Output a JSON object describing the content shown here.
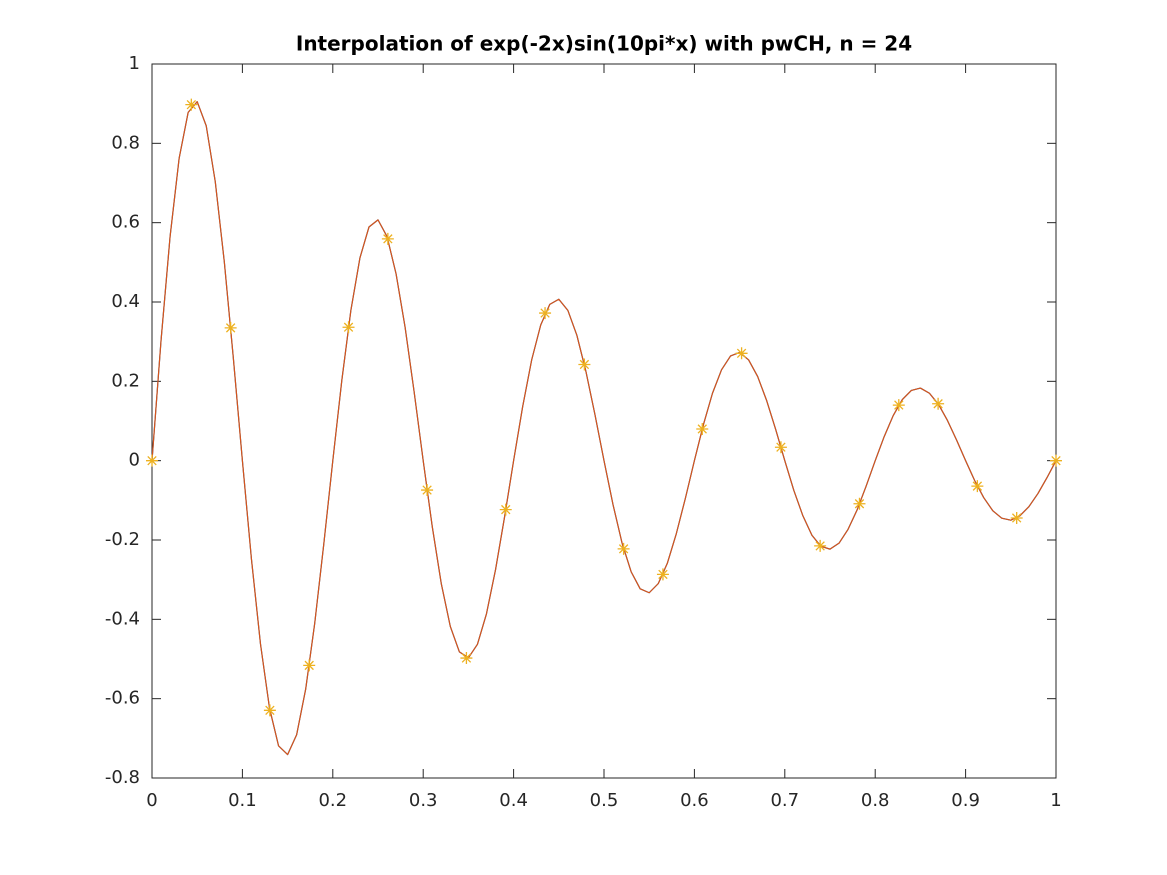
{
  "chart_data": {
    "type": "line",
    "title": "Interpolation of exp(-2x)sin(10pi*x) with pwCH, n = 24",
    "x": [
      0,
      0.01,
      0.02,
      0.03,
      0.04,
      0.05,
      0.06,
      0.07,
      0.08,
      0.09,
      0.1,
      0.11,
      0.12,
      0.13,
      0.14,
      0.15,
      0.16,
      0.17,
      0.18,
      0.19,
      0.2,
      0.21,
      0.22,
      0.23,
      0.24,
      0.25,
      0.26,
      0.27,
      0.28,
      0.29,
      0.3,
      0.31,
      0.32,
      0.33,
      0.34,
      0.35,
      0.36,
      0.37,
      0.38,
      0.39,
      0.4,
      0.41,
      0.42,
      0.43,
      0.44,
      0.45,
      0.46,
      0.47,
      0.48,
      0.49,
      0.5,
      0.51,
      0.52,
      0.53,
      0.54,
      0.55,
      0.56,
      0.57,
      0.58,
      0.59,
      0.6,
      0.61,
      0.62,
      0.63,
      0.64,
      0.65,
      0.66,
      0.67,
      0.68,
      0.69,
      0.7,
      0.71,
      0.72,
      0.73,
      0.74,
      0.75,
      0.76,
      0.77,
      0.78,
      0.79,
      0.8,
      0.81,
      0.82,
      0.83,
      0.84,
      0.85,
      0.86,
      0.87,
      0.88,
      0.89,
      0.9,
      0.91,
      0.92,
      0.93,
      0.94,
      0.95,
      0.96,
      0.97,
      0.98,
      0.99,
      1
    ],
    "series": [
      {
        "color": "#0072bd",
        "values": [
          0,
          0.303,
          0.565,
          0.762,
          0.878,
          0.905,
          0.844,
          0.703,
          0.501,
          0.258,
          0,
          -0.248,
          -0.462,
          -0.624,
          -0.719,
          -0.741,
          -0.691,
          -0.576,
          -0.41,
          -0.211,
          0,
          0.203,
          0.379,
          0.511,
          0.589,
          0.607,
          0.565,
          0.471,
          0.336,
          0.173,
          0,
          -0.166,
          -0.31,
          -0.418,
          -0.482,
          -0.497,
          -0.463,
          -0.386,
          -0.275,
          -0.142,
          0,
          0.136,
          0.254,
          0.342,
          0.394,
          0.407,
          0.379,
          0.316,
          0.225,
          0.116,
          0,
          -0.111,
          -0.208,
          -0.28,
          -0.323,
          -0.333,
          -0.31,
          -0.259,
          -0.184,
          -0.095,
          0,
          0.091,
          0.17,
          0.229,
          0.264,
          0.273,
          0.254,
          0.212,
          0.151,
          0.078,
          0,
          -0.075,
          -0.139,
          -0.188,
          -0.216,
          -0.223,
          -0.208,
          -0.173,
          -0.124,
          -0.064,
          0,
          0.061,
          0.114,
          0.154,
          0.177,
          0.183,
          0.17,
          0.142,
          0.101,
          0.052,
          0,
          -0.05,
          -0.093,
          -0.126,
          -0.145,
          -0.15,
          -0.139,
          -0.116,
          -0.083,
          -0.043,
          0
        ]
      },
      {
        "color": "#d95319",
        "values": [
          0,
          0.303,
          0.565,
          0.762,
          0.878,
          0.905,
          0.844,
          0.703,
          0.501,
          0.258,
          0,
          -0.248,
          -0.462,
          -0.624,
          -0.719,
          -0.741,
          -0.691,
          -0.576,
          -0.41,
          -0.211,
          0,
          0.203,
          0.379,
          0.511,
          0.589,
          0.607,
          0.565,
          0.471,
          0.336,
          0.173,
          0,
          -0.166,
          -0.31,
          -0.418,
          -0.482,
          -0.497,
          -0.463,
          -0.386,
          -0.275,
          -0.142,
          0,
          0.136,
          0.254,
          0.342,
          0.394,
          0.407,
          0.379,
          0.316,
          0.225,
          0.116,
          0,
          -0.111,
          -0.208,
          -0.28,
          -0.323,
          -0.333,
          -0.31,
          -0.259,
          -0.184,
          -0.095,
          0,
          0.091,
          0.17,
          0.229,
          0.264,
          0.273,
          0.254,
          0.212,
          0.151,
          0.078,
          0,
          -0.075,
          -0.139,
          -0.188,
          -0.216,
          -0.223,
          -0.208,
          -0.173,
          -0.124,
          -0.064,
          0,
          0.061,
          0.114,
          0.154,
          0.177,
          0.183,
          0.17,
          0.142,
          0.101,
          0.052,
          0,
          -0.05,
          -0.093,
          -0.126,
          -0.145,
          -0.15,
          -0.139,
          -0.116,
          -0.083,
          -0.043,
          0
        ]
      },
      {
        "color": "#edb120",
        "marker": "*",
        "x": [
          0,
          0.0435,
          0.087,
          0.1304,
          0.1739,
          0.2174,
          0.2609,
          0.3043,
          0.3478,
          0.3913,
          0.4348,
          0.4783,
          0.5217,
          0.5652,
          0.6087,
          0.6522,
          0.6957,
          0.7391,
          0.7826,
          0.8261,
          0.8696,
          0.913,
          0.9565,
          1
        ],
        "values": [
          0,
          0.8975,
          0.3348,
          -0.6294,
          -0.5161,
          0.3364,
          0.5592,
          -0.0741,
          -0.4976,
          -0.1234,
          0.3721,
          0.2425,
          -0.2223,
          -0.2867,
          0.0799,
          0.2707,
          0.0339,
          -0.2149,
          -0.1086,
          0.1401,
          0.1435,
          -0.0642,
          -0.1445,
          0
        ]
      }
    ],
    "xlim": [
      0,
      1
    ],
    "xticks": [
      0,
      0.1,
      0.2,
      0.3,
      0.4,
      0.5,
      0.6,
      0.7,
      0.8,
      0.9,
      1
    ],
    "ylim": [
      -0.8,
      1
    ],
    "yticks": [
      -0.8,
      -0.6,
      -0.4,
      -0.2,
      0,
      0.2,
      0.4,
      0.6,
      0.8,
      1
    ],
    "grid": false
  }
}
